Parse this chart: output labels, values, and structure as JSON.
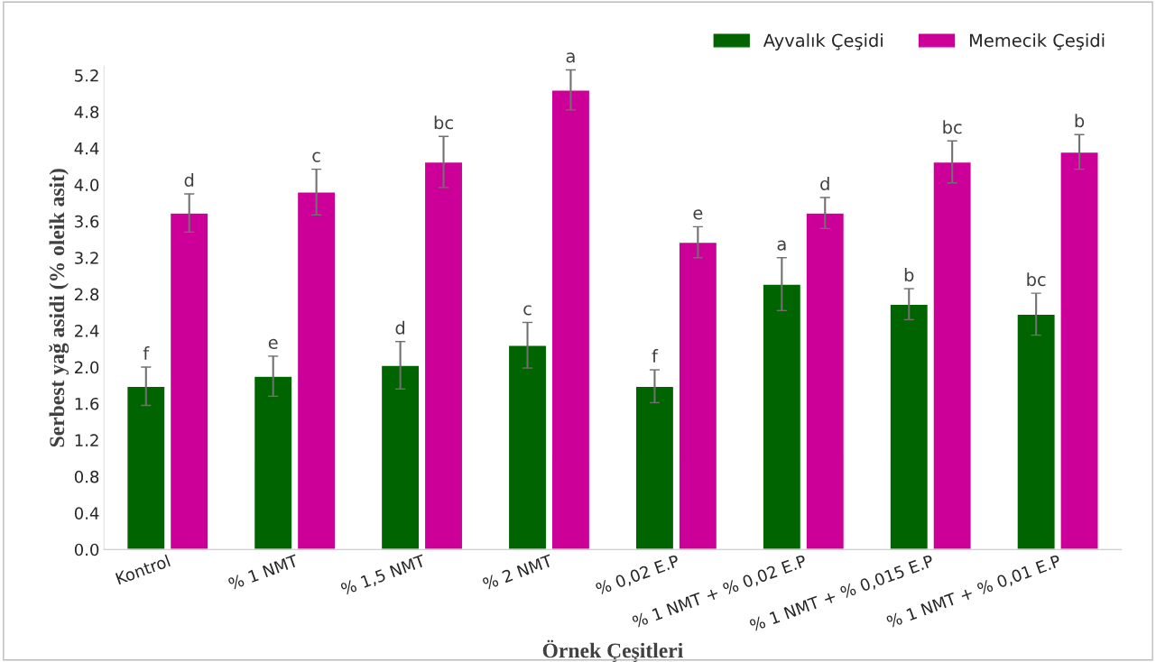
{
  "chart_data": {
    "type": "bar",
    "xlabel": "Örnek Çeşitleri",
    "ylabel": "Serbest yağ asidi (% oleik asit)",
    "categories": [
      "Kontrol",
      "% 1 NMT",
      "% 1,5 NMT",
      "% 2 NMT",
      "% 0,02 E.P",
      "% 1 NMT + % 0,02 E.P",
      "% 1 NMT + % 0,015 E.P",
      "% 1 NMT + % 0,01 E.P"
    ],
    "series": [
      {
        "name": "Ayvalık Çeşidi",
        "color": "#006400",
        "values": [
          1.79,
          1.9,
          2.02,
          2.24,
          1.79,
          2.91,
          2.69,
          2.58
        ],
        "errors": [
          0.21,
          0.22,
          0.26,
          0.25,
          0.18,
          0.29,
          0.17,
          0.23
        ],
        "value_labels": [
          "f",
          "e",
          "d",
          "c",
          "f",
          "a",
          "b",
          "bc"
        ]
      },
      {
        "name": "Memecik Çeşidi",
        "color": "#cc0099",
        "values": [
          3.69,
          3.92,
          4.25,
          5.04,
          3.37,
          3.69,
          4.25,
          4.36
        ],
        "errors": [
          0.21,
          0.25,
          0.28,
          0.22,
          0.17,
          0.17,
          0.23,
          0.19
        ],
        "value_labels": [
          "d",
          "c",
          "bc",
          "a",
          "e",
          "d",
          "bc",
          "b"
        ]
      }
    ],
    "ylim": [
      0,
      5.3
    ],
    "yticks": [
      {
        "value": 0,
        "label": "0.0"
      },
      {
        "value": 0.4,
        "label": "0.4"
      },
      {
        "value": 0.8,
        "label": "0.8"
      },
      {
        "value": 1.2,
        "label": "1.2"
      },
      {
        "value": 1.6,
        "label": "1.6"
      },
      {
        "value": 2.0,
        "label": "2.0"
      },
      {
        "value": 2.4,
        "label": "2.4"
      },
      {
        "value": 2.8,
        "label": "2.8"
      },
      {
        "value": 3.2,
        "label": "3.2"
      },
      {
        "value": 3.6,
        "label": "3.6"
      },
      {
        "value": 4.0,
        "label": "4.0"
      },
      {
        "value": 4.4,
        "label": "4.4"
      },
      {
        "value": 4.8,
        "label": "4.8"
      },
      {
        "value": 5.2,
        "label": "5.2"
      }
    ],
    "legend": "top right",
    "grid": false
  }
}
